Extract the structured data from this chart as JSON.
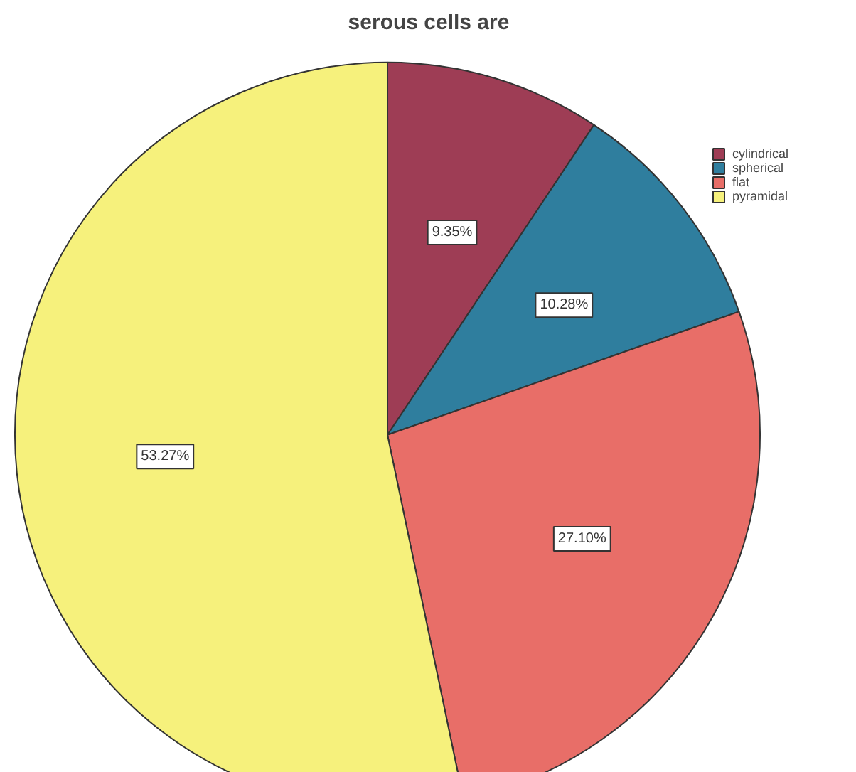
{
  "chart_data": {
    "type": "pie",
    "title": "serous cells are",
    "categories": [
      "cylindrical",
      "spherical",
      "flat",
      "pyramidal"
    ],
    "values": [
      9.35,
      10.28,
      27.1,
      53.27
    ],
    "colors": [
      "#9e3d55",
      "#2f7e9e",
      "#e86e68",
      "#f6f17c"
    ],
    "value_labels": [
      "9.35%",
      "10.28%",
      "27.10%",
      "53.27%"
    ],
    "legend": "top right"
  }
}
